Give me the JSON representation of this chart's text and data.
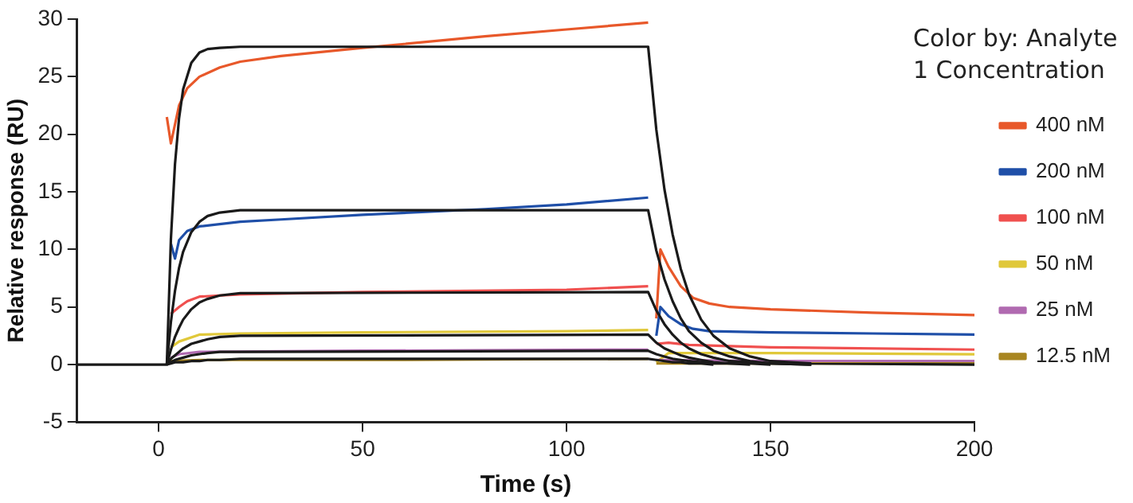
{
  "chart_data": {
    "type": "line",
    "xlabel": "Time (s)",
    "ylabel": "Relative response (RU)",
    "legend_title": "Color by: Analyte 1 Concentration",
    "xlim": [
      -20,
      200
    ],
    "xticks": [
      0,
      50,
      100,
      150,
      200
    ],
    "ylim": [
      -5,
      30
    ],
    "yticks": [
      -5,
      0,
      5,
      10,
      15,
      20,
      25,
      30
    ],
    "grid": false,
    "legend": "right",
    "marker": "none",
    "line_style": "solid",
    "series": [
      {
        "name": "400 nM",
        "color": "#e8582a",
        "x": [
          2,
          3,
          5,
          7,
          10,
          15,
          20,
          30,
          50,
          80,
          100,
          120,
          121,
          122,
          123,
          125,
          128,
          131,
          135,
          140,
          150,
          175,
          200
        ],
        "values": [
          21.5,
          19.2,
          22.5,
          24,
          25,
          25.8,
          26.3,
          26.8,
          27.5,
          28.5,
          29.1,
          29.7,
          null,
          4,
          10,
          8.5,
          6.8,
          5.8,
          5.3,
          5,
          4.8,
          4.5,
          4.3
        ]
      },
      {
        "name": "200 nM",
        "color": "#1f4fa8",
        "x": [
          3,
          4,
          5,
          7,
          10,
          20,
          30,
          50,
          80,
          100,
          120,
          121,
          122,
          123,
          125,
          128,
          131,
          135,
          150,
          175,
          200
        ],
        "values": [
          10.5,
          9.2,
          10.8,
          11.6,
          12,
          12.4,
          12.6,
          13,
          13.5,
          13.9,
          14.5,
          null,
          2.5,
          5,
          4.2,
          3.5,
          3.1,
          2.9,
          2.8,
          2.7,
          2.6
        ]
      },
      {
        "name": "100 nM",
        "color": "#f0504f",
        "x": [
          3,
          5,
          7,
          10,
          20,
          50,
          100,
          120,
          121,
          122,
          125,
          130,
          150,
          200
        ],
        "values": [
          4.4,
          5,
          5.5,
          5.9,
          6.1,
          6.3,
          6.5,
          6.8,
          null,
          1.8,
          1.9,
          1.7,
          1.5,
          1.3
        ]
      },
      {
        "name": "50 nM",
        "color": "#e0c83a",
        "x": [
          3,
          5,
          10,
          20,
          50,
          100,
          120,
          121,
          122,
          125,
          150,
          200
        ],
        "values": [
          1.5,
          2,
          2.6,
          2.7,
          2.8,
          2.9,
          3,
          null,
          0.2,
          1,
          1,
          0.9
        ]
      },
      {
        "name": "25 nM",
        "color": "#b06ab0",
        "x": [
          3,
          5,
          10,
          50,
          120,
          121,
          122,
          150,
          200
        ],
        "values": [
          0.6,
          0.9,
          1.1,
          1.2,
          1.3,
          null,
          0.4,
          0.3,
          0.3
        ]
      },
      {
        "name": "12.5 nM",
        "color": "#a88520",
        "x": [
          3,
          10,
          50,
          120,
          121,
          122,
          200
        ],
        "values": [
          0.3,
          0.4,
          0.4,
          0.5,
          null,
          0.1,
          0.1
        ]
      },
      {
        "color": "#1a1a1a",
        "x": [
          -20,
          2,
          3,
          4,
          5,
          6,
          8,
          10,
          12,
          15,
          20,
          120,
          122,
          124,
          126,
          128,
          130,
          133,
          136,
          140,
          145,
          150,
          160,
          200
        ],
        "values": [
          0,
          0,
          10.9,
          17.4,
          21.4,
          23.9,
          26.2,
          27.1,
          27.4,
          27.5,
          27.6,
          27.6,
          20.4,
          15.2,
          11.3,
          8.3,
          6.1,
          3.9,
          2.5,
          1.4,
          0.7,
          0.3,
          0.1,
          0
        ]
      },
      {
        "color": "#1a1a1a",
        "x": [
          2,
          3,
          4,
          5,
          6,
          8,
          10,
          12,
          15,
          20,
          120,
          122,
          124,
          126,
          128,
          130,
          133,
          136,
          140,
          145,
          150,
          160
        ],
        "values": [
          0,
          3.7,
          6.4,
          8.4,
          9.8,
          11.5,
          12.4,
          12.9,
          13.2,
          13.4,
          13.4,
          9.9,
          7.4,
          5.5,
          4,
          2.9,
          1.9,
          1.2,
          0.7,
          0.3,
          0.1,
          0
        ]
      },
      {
        "color": "#1a1a1a",
        "x": [
          2,
          3,
          4,
          5,
          6,
          8,
          10,
          12,
          15,
          20,
          120,
          122,
          124,
          126,
          128,
          130,
          133,
          136,
          140,
          145,
          150,
          160
        ],
        "values": [
          0,
          1.3,
          2.4,
          3.2,
          3.9,
          4.8,
          5.4,
          5.7,
          6,
          6.2,
          6.3,
          4.7,
          3.5,
          2.6,
          1.9,
          1.4,
          0.9,
          0.6,
          0.3,
          0.2,
          0.1,
          0
        ]
      },
      {
        "color": "#1a1a1a",
        "x": [
          2,
          3,
          4,
          5,
          6,
          8,
          10,
          12,
          15,
          20,
          120,
          122,
          124,
          126,
          128,
          130,
          133,
          136,
          140,
          145,
          150
        ],
        "values": [
          0,
          0.5,
          0.8,
          1.1,
          1.4,
          1.8,
          2,
          2.2,
          2.4,
          2.5,
          2.6,
          1.9,
          1.4,
          1.1,
          0.8,
          0.6,
          0.4,
          0.2,
          0.1,
          0.1,
          0
        ]
      },
      {
        "color": "#1a1a1a",
        "x": [
          2,
          3,
          4,
          5,
          6,
          8,
          10,
          12,
          15,
          20,
          120,
          122,
          124,
          126,
          128,
          130,
          133,
          136,
          140,
          145
        ],
        "values": [
          0,
          0.2,
          0.4,
          0.5,
          0.6,
          0.8,
          0.9,
          1,
          1.1,
          1.1,
          1.2,
          0.9,
          0.7,
          0.5,
          0.4,
          0.3,
          0.2,
          0.1,
          0.1,
          0
        ]
      },
      {
        "color": "#1a1a1a",
        "x": [
          2,
          3,
          4,
          5,
          6,
          8,
          10,
          12,
          15,
          20,
          120,
          122,
          124,
          126,
          128,
          130,
          133,
          136
        ],
        "values": [
          0,
          0.1,
          0.2,
          0.2,
          0.2,
          0.3,
          0.3,
          0.4,
          0.4,
          0.5,
          0.5,
          0.4,
          0.3,
          0.2,
          0.2,
          0.1,
          0.1,
          0
        ]
      }
    ]
  }
}
